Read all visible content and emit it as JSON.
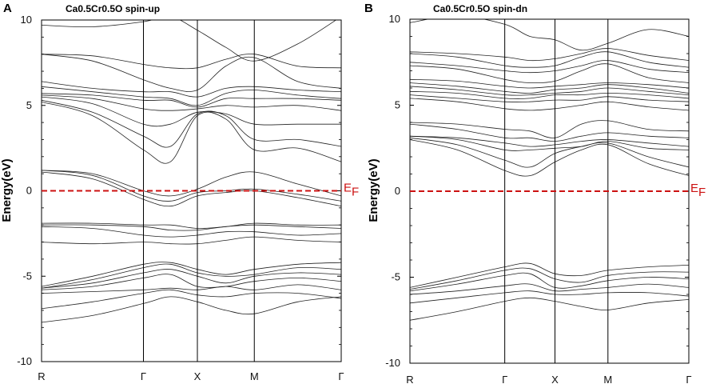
{
  "chart_data": [
    {
      "type": "line",
      "panel_letter": "A",
      "title": "Ca0.5Cr0.5O   spin-up",
      "xlabel": "",
      "ylabel": "Energy(eV)",
      "ylim": [
        -10,
        10
      ],
      "yticks": [
        -10,
        -5,
        0,
        5,
        10
      ],
      "k_points": [
        "R",
        "Γ",
        "X",
        "M",
        "Γ"
      ],
      "k_positions": [
        0,
        0.34,
        0.52,
        0.71,
        1.0
      ],
      "fermi_level": 0,
      "fermi_label": "E",
      "fermi_subscript": "F",
      "bands": [
        [
          -7.7,
          -7.3,
          -6.6,
          -6.2,
          -6.5,
          -7.0,
          -7.2,
          -6.5,
          -6.2
        ],
        [
          -6.9,
          -6.5,
          -6.0,
          -5.8,
          -6.1,
          -6.2,
          -6.0,
          -6.0,
          -6.3
        ],
        [
          -6.0,
          -5.9,
          -5.8,
          -5.7,
          -5.8,
          -5.6,
          -5.8,
          -5.5,
          -5.8
        ],
        [
          -5.8,
          -5.6,
          -5.1,
          -4.9,
          -5.6,
          -5.6,
          -5.3,
          -5.1,
          -5.3
        ],
        [
          -5.7,
          -5.4,
          -4.8,
          -4.6,
          -5.0,
          -5.4,
          -5.0,
          -4.8,
          -4.9
        ],
        [
          -5.7,
          -5.2,
          -4.5,
          -4.3,
          -4.8,
          -5.0,
          -4.9,
          -4.5,
          -4.6
        ],
        [
          -5.6,
          -5.0,
          -4.3,
          -4.2,
          -4.6,
          -4.9,
          -4.6,
          -4.3,
          -4.2
        ],
        [
          -3.0,
          -3.1,
          -3.0,
          -3.1,
          -3.1,
          -2.9,
          -2.7,
          -2.9,
          -3.0
        ],
        [
          -2.1,
          -2.2,
          -2.6,
          -2.7,
          -2.6,
          -2.4,
          -2.4,
          -2.6,
          -2.5
        ],
        [
          -2.0,
          -2.0,
          -2.1,
          -2.3,
          -2.3,
          -2.1,
          -2.0,
          -2.1,
          -2.2
        ],
        [
          -1.9,
          -1.9,
          -2.0,
          -2.0,
          -2.2,
          -2.1,
          -1.9,
          -2.0,
          -2.0
        ],
        [
          1.1,
          0.7,
          -0.5,
          -0.9,
          -0.3,
          -0.1,
          0.0,
          -0.4,
          -0.9
        ],
        [
          1.2,
          0.9,
          -0.3,
          -0.6,
          -0.1,
          0.0,
          0.1,
          -0.2,
          -0.6
        ],
        [
          1.2,
          1.0,
          0.0,
          -0.3,
          0.1,
          0.8,
          1.1,
          0.4,
          -0.3
        ],
        [
          5.2,
          4.4,
          2.4,
          1.7,
          4.4,
          4.2,
          2.4,
          2.5,
          1.7
        ],
        [
          5.3,
          4.6,
          3.2,
          2.6,
          4.5,
          4.4,
          3.0,
          3.0,
          2.6
        ],
        [
          5.5,
          5.1,
          3.9,
          3.9,
          4.6,
          4.5,
          3.9,
          3.9,
          3.9
        ],
        [
          5.6,
          5.4,
          4.8,
          4.7,
          4.8,
          5.0,
          4.9,
          5.0,
          4.7
        ],
        [
          5.7,
          5.6,
          5.3,
          5.3,
          4.9,
          5.4,
          5.4,
          5.4,
          5.3
        ],
        [
          6.1,
          5.8,
          5.5,
          5.4,
          5.0,
          5.7,
          5.9,
          5.6,
          5.4
        ],
        [
          6.4,
          6.0,
          5.8,
          5.8,
          5.5,
          6.0,
          6.1,
          5.9,
          5.8
        ],
        [
          8.0,
          7.6,
          6.5,
          6.0,
          5.9,
          7.3,
          7.8,
          6.4,
          6.0
        ],
        [
          8.0,
          7.9,
          7.4,
          7.2,
          7.2,
          7.7,
          8.0,
          7.3,
          7.2
        ],
        [
          9.7,
          9.6,
          9.9,
          10.2,
          9.4,
          8.4,
          7.6,
          8.6,
          10.2
        ]
      ]
    },
    {
      "type": "line",
      "panel_letter": "B",
      "title": "Ca0.5Cr0.5O   spin-dn",
      "xlabel": "",
      "ylabel": "Energy(eV)",
      "ylim": [
        -10,
        10
      ],
      "yticks": [
        -10,
        -5,
        0,
        5,
        10
      ],
      "k_points": [
        "R",
        "Γ",
        "X",
        "M",
        "Γ"
      ],
      "k_positions": [
        0,
        0.34,
        0.52,
        0.71,
        1.0
      ],
      "fermi_level": 0,
      "fermi_label": "E",
      "fermi_subscript": "F",
      "bands": [
        [
          -7.5,
          -7.0,
          -6.4,
          -6.2,
          -6.4,
          -6.7,
          -6.9,
          -6.5,
          -6.3
        ],
        [
          -6.5,
          -6.2,
          -5.9,
          -5.8,
          -6.0,
          -6.0,
          -5.9,
          -5.9,
          -6.1
        ],
        [
          -6.0,
          -5.8,
          -5.5,
          -5.4,
          -5.8,
          -5.7,
          -5.6,
          -5.4,
          -5.6
        ],
        [
          -5.8,
          -5.4,
          -4.9,
          -4.8,
          -5.6,
          -5.5,
          -5.2,
          -5.0,
          -5.1
        ],
        [
          -5.7,
          -5.2,
          -4.6,
          -4.5,
          -5.1,
          -5.3,
          -4.9,
          -4.7,
          -4.7
        ],
        [
          -5.6,
          -5.0,
          -4.4,
          -4.2,
          -4.8,
          -4.9,
          -4.6,
          -4.4,
          -4.3
        ],
        [
          3.0,
          2.4,
          1.2,
          0.9,
          1.7,
          2.4,
          2.7,
          1.6,
          0.9
        ],
        [
          3.1,
          2.7,
          1.8,
          1.4,
          2.2,
          2.6,
          2.8,
          2.0,
          1.4
        ],
        [
          3.2,
          3.0,
          2.4,
          2.4,
          2.5,
          2.6,
          2.9,
          2.5,
          2.4
        ],
        [
          3.2,
          3.1,
          2.8,
          2.6,
          2.7,
          2.9,
          3.0,
          2.8,
          2.6
        ],
        [
          3.9,
          3.6,
          3.1,
          3.1,
          2.9,
          3.2,
          3.4,
          3.2,
          3.1
        ],
        [
          4.0,
          3.9,
          3.6,
          3.5,
          3.1,
          3.9,
          4.1,
          3.6,
          3.5
        ],
        [
          5.4,
          5.2,
          4.8,
          4.7,
          4.8,
          5.0,
          5.2,
          4.9,
          4.7
        ],
        [
          5.6,
          5.4,
          5.2,
          5.2,
          5.3,
          5.3,
          5.5,
          5.3,
          5.2
        ],
        [
          5.8,
          5.7,
          5.4,
          5.4,
          5.6,
          5.6,
          5.7,
          5.6,
          5.4
        ],
        [
          6.1,
          5.9,
          5.6,
          5.6,
          5.7,
          5.8,
          6.0,
          5.8,
          5.6
        ],
        [
          6.3,
          6.1,
          5.8,
          5.7,
          5.9,
          6.0,
          6.2,
          6.0,
          5.7
        ],
        [
          6.5,
          6.4,
          6.1,
          6.0,
          6.1,
          6.2,
          6.3,
          6.2,
          6.0
        ],
        [
          7.3,
          7.1,
          6.5,
          6.3,
          6.4,
          7.0,
          7.4,
          6.6,
          6.3
        ],
        [
          7.5,
          7.3,
          7.0,
          6.9,
          7.0,
          7.3,
          7.6,
          7.1,
          6.9
        ],
        [
          8.0,
          7.8,
          7.3,
          7.2,
          7.3,
          7.8,
          8.1,
          7.5,
          7.2
        ],
        [
          8.1,
          8.0,
          7.8,
          7.6,
          7.7,
          8.0,
          8.3,
          7.9,
          7.6
        ],
        [
          9.8,
          10.2,
          9.7,
          9.0,
          8.8,
          8.2,
          8.6,
          9.4,
          9.0
        ]
      ]
    }
  ]
}
